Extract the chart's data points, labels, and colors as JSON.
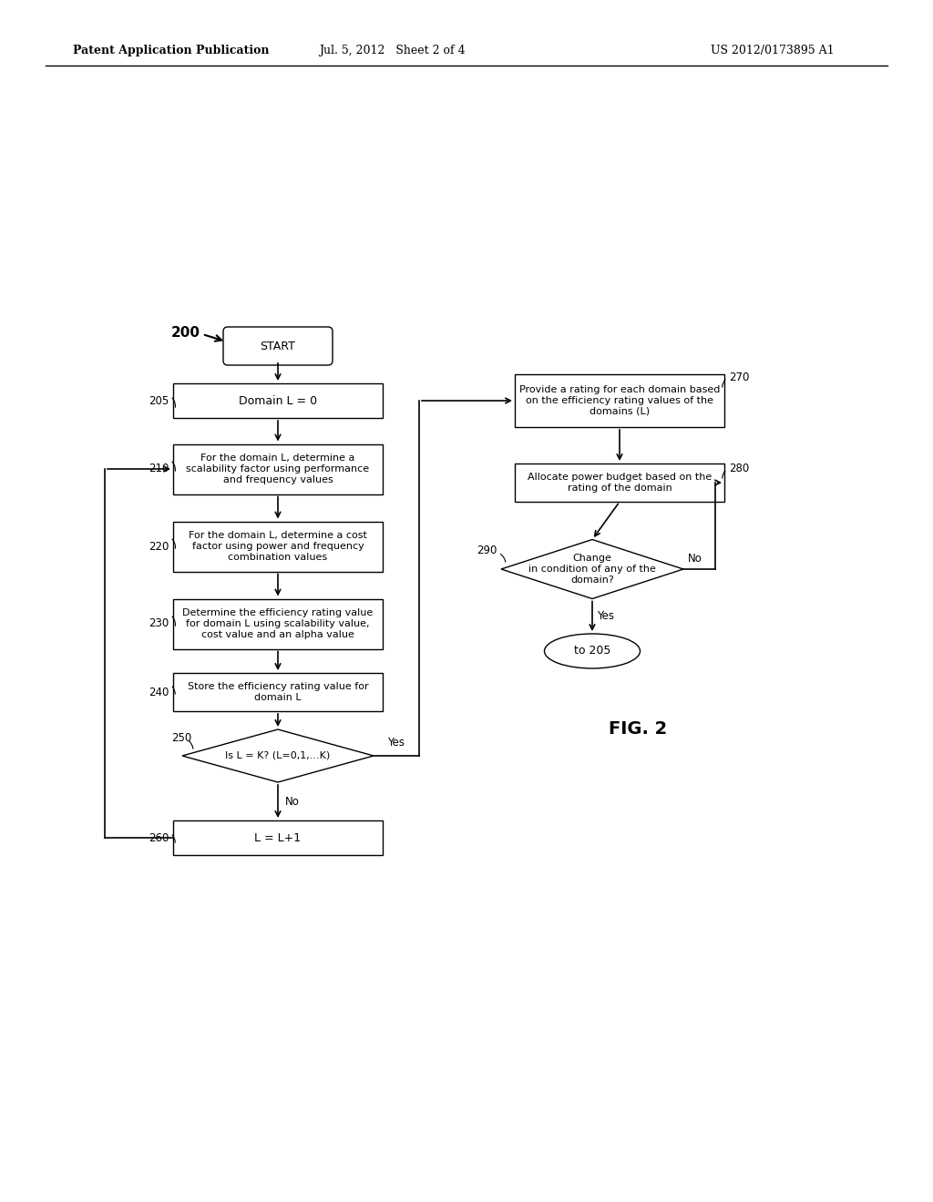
{
  "bg_color": "#ffffff",
  "header_left": "Patent Application Publication",
  "header_mid": "Jul. 5, 2012   Sheet 2 of 4",
  "header_right": "US 2012/0173895 A1",
  "fig_label": "FIG. 2"
}
